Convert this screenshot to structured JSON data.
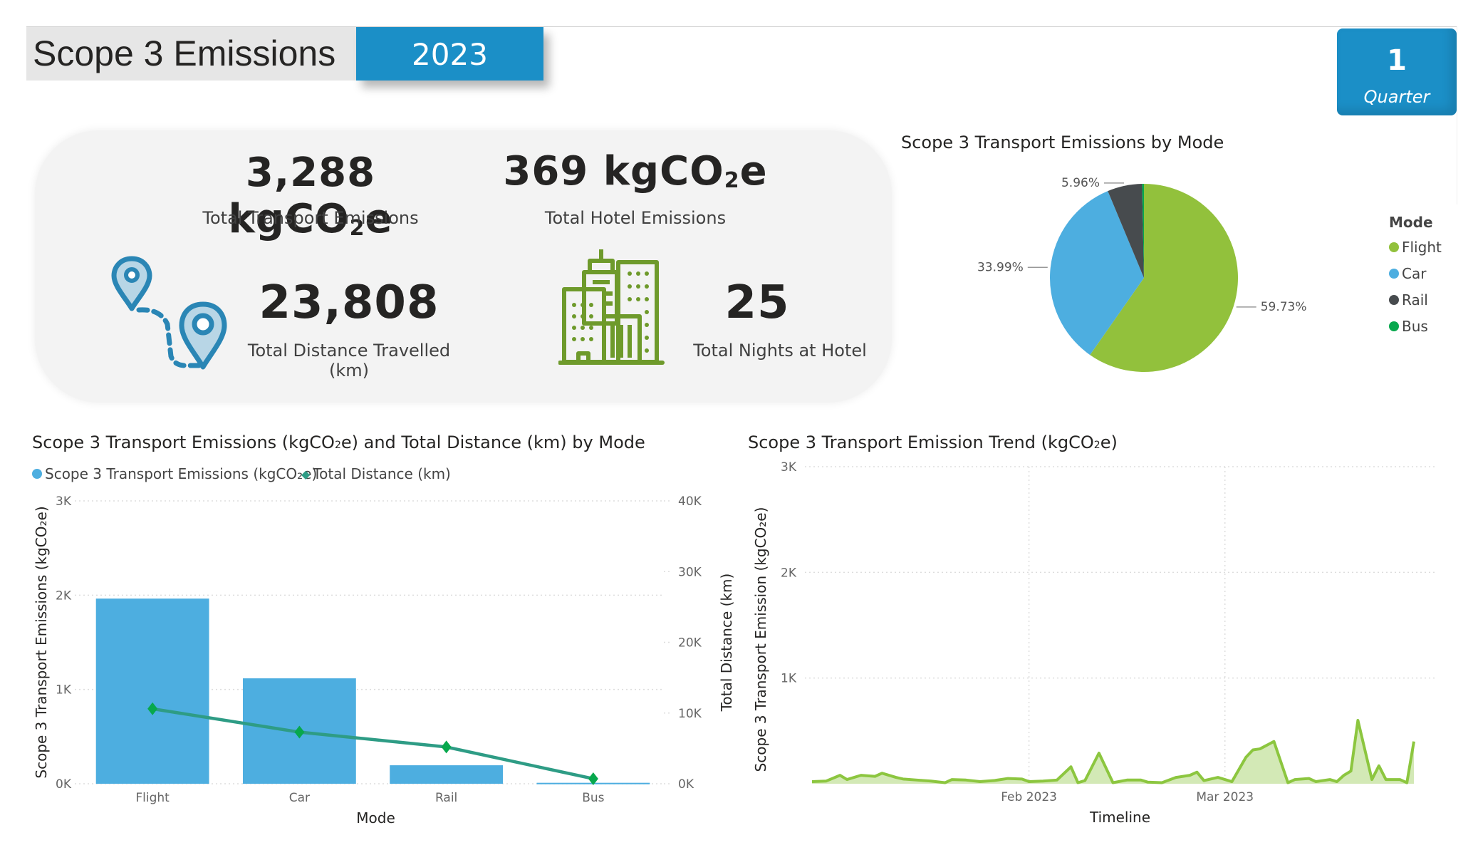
{
  "header": {
    "title": "Scope 3 Emissions",
    "year": "2023",
    "quarter_value": "1",
    "quarter_label": "Quarter"
  },
  "kpis": {
    "transport_emissions": {
      "value": "3,288 kgCO",
      "sub": "2",
      "unit_suffix": "e",
      "label": "Total Transport Emissions"
    },
    "hotel_emissions": {
      "value": "369 kgCO",
      "sub": "2",
      "unit_suffix": "e",
      "label": "Total Hotel Emissions"
    },
    "distance": {
      "value": "23,808",
      "label": "Total Distance Travelled (km)",
      "icon": "map-route-pins-icon"
    },
    "nights": {
      "value": "25",
      "label": "Total Nights at Hotel",
      "icon": "city-buildings-icon"
    }
  },
  "colors": {
    "brand_blue": "#1b8fc7",
    "flight": "#92c13c",
    "car": "#4daee0",
    "rail": "#474b4e",
    "bus": "#07a84d",
    "distance_line": "#2e9c85",
    "distance_marker": "#07a84d",
    "trend_line": "#8cc63f",
    "trend_fill": "#d3e9b6",
    "route_icon": "#2a86b5",
    "building_icon": "#6e9a2b"
  },
  "chart_data": [
    {
      "id": "pie",
      "type": "pie",
      "title": "Scope 3 Transport Emissions by Mode",
      "legend_title": "Mode",
      "legend_position": "right",
      "categories": [
        "Flight",
        "Car",
        "Rail",
        "Bus"
      ],
      "values": [
        59.73,
        33.99,
        5.96,
        0.32
      ],
      "labels": [
        "59.73%",
        "33.99%",
        "5.96%",
        ""
      ]
    },
    {
      "id": "combo",
      "type": "bar",
      "title": "Scope 3 Transport Emissions (kgCO₂e) and Total Distance (km) by Mode",
      "title_parts": [
        "Scope 3 Transport Emissions (kgCO",
        "2",
        "e) and Total Distance (km) by Mode"
      ],
      "legend": [
        "Scope 3 Transport Emissions (kgCO₂e)",
        "Total Distance (km)"
      ],
      "legend_position": "top-left",
      "xlabel": "Mode",
      "ylabel": "Scope 3 Transport Emissions (kgCO₂e)",
      "y2label": "Total Distance (km)",
      "categories": [
        "Flight",
        "Car",
        "Rail",
        "Bus"
      ],
      "series": [
        {
          "name": "Scope 3 Transport Emissions (kgCO₂e)",
          "type": "bar",
          "axis": "left",
          "values": [
            1964,
            1118,
            196,
            10
          ]
        },
        {
          "name": "Total Distance (km)",
          "type": "line",
          "axis": "right",
          "values": [
            10600,
            7300,
            5200,
            708
          ]
        }
      ],
      "ylim": [
        0,
        3000
      ],
      "y2lim": [
        0,
        40000
      ],
      "yticks": [
        "0K",
        "1K",
        "2K",
        "3K"
      ],
      "y2ticks": [
        "0K",
        "10K",
        "20K",
        "30K",
        "40K"
      ],
      "grid": true
    },
    {
      "id": "trend",
      "type": "area",
      "title": "Scope 3 Transport Emission Trend (kgCO₂e)",
      "title_parts": [
        "Scope 3 Transport Emission Trend (kgCO",
        "2",
        "e)"
      ],
      "xlabel": "Timeline",
      "ylabel": "Scope 3 Transport Emission (kgCO₂e)",
      "ylim": [
        0,
        3000
      ],
      "yticks": [
        "1K",
        "2K",
        "3K"
      ],
      "xticks": [
        {
          "label": "Feb 2023",
          "day": 31
        },
        {
          "label": "Mar 2023",
          "day": 59
        }
      ],
      "x_days": [
        0,
        2,
        4,
        5,
        7,
        9,
        10,
        12,
        13,
        15,
        17,
        19,
        20,
        22,
        24,
        26,
        28,
        30,
        31,
        33,
        35,
        37,
        38,
        39,
        41,
        43,
        45,
        47,
        48,
        50,
        52,
        54,
        55,
        56,
        58,
        60,
        62,
        63,
        64,
        66,
        68,
        69,
        71,
        72,
        74,
        75,
        76,
        77,
        78,
        80,
        81,
        82,
        84,
        85,
        86
      ],
      "values": [
        20,
        25,
        80,
        40,
        80,
        70,
        100,
        60,
        45,
        35,
        25,
        10,
        40,
        35,
        20,
        30,
        50,
        45,
        20,
        25,
        35,
        160,
        10,
        30,
        290,
        10,
        35,
        35,
        15,
        10,
        60,
        80,
        110,
        30,
        60,
        20,
        250,
        320,
        330,
        400,
        10,
        40,
        50,
        20,
        40,
        20,
        80,
        120,
        600,
        40,
        170,
        40,
        40,
        10,
        400
      ],
      "grid": true
    }
  ]
}
